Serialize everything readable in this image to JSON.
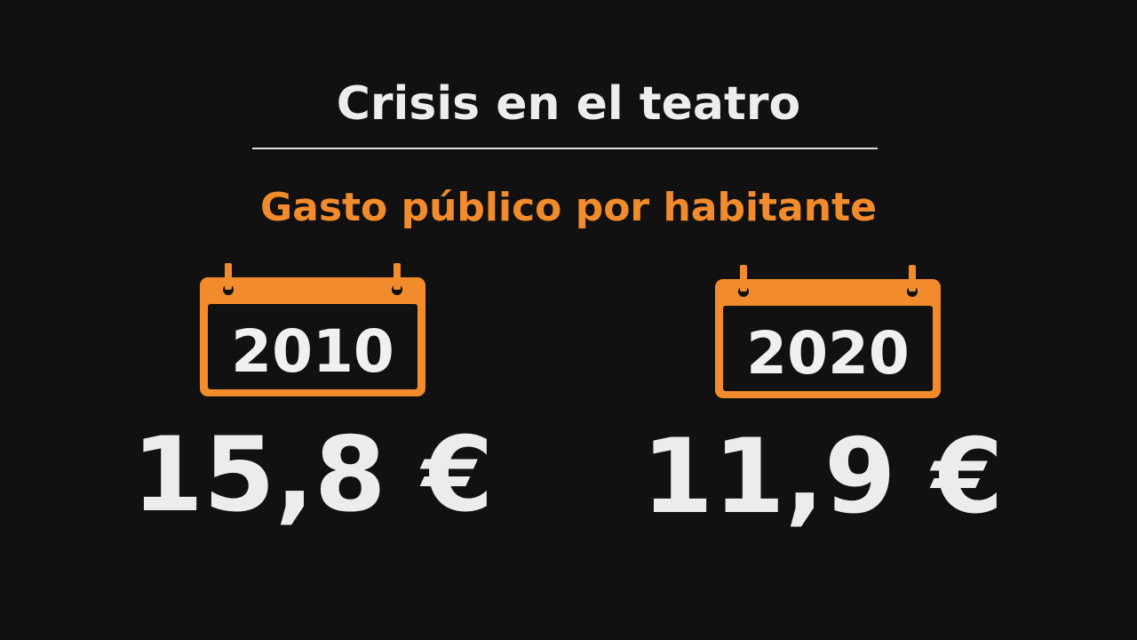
{
  "title": "Crisis en el teatro",
  "subtitle": "Gasto público por habitante",
  "accent_color": "#f28b2c",
  "items": [
    {
      "year": "2010",
      "amount": "15,8 €"
    },
    {
      "year": "2020",
      "amount": "11,9 €"
    }
  ]
}
